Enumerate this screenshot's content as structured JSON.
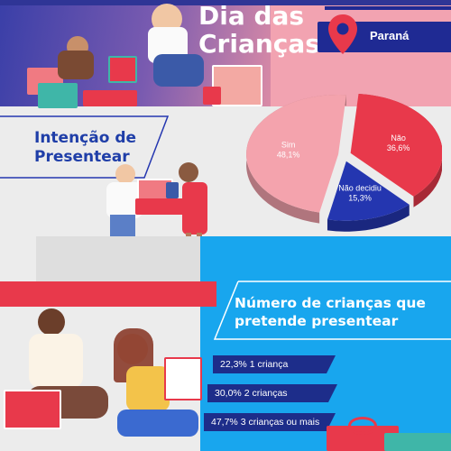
{
  "header": {
    "title_line1": "Dia das",
    "title_line2": "Crianças",
    "region": "Paraná"
  },
  "intent_section": {
    "title_line1": "Intenção de",
    "title_line2": "Presentear"
  },
  "count_section": {
    "title_line1": "Número de crianças que",
    "title_line2": "pretende presentear",
    "bars": [
      {
        "label": "22,3% 1 criança"
      },
      {
        "label": "30,0% 2 crianças"
      },
      {
        "label": "47,7% 3 crianças ou mais"
      }
    ]
  },
  "colors": {
    "navy": "#1f2a93",
    "pink": "#f2a3b1",
    "red": "#e8394b",
    "blue": "#18a6ee",
    "bar_navy": "#1d2d8a"
  },
  "chart_data": [
    {
      "type": "pie",
      "title": "Intenção de Presentear",
      "slices": [
        {
          "label": "Sim",
          "value": 48.1,
          "value_label": "48,1%",
          "color": "#f4a3ad"
        },
        {
          "label": "Não",
          "value": 36.6,
          "value_label": "36,6%",
          "color": "#e8394b"
        },
        {
          "label": "Não decidiu",
          "value": 15.3,
          "value_label": "15,3%",
          "color": "#2436b0"
        }
      ],
      "style": "3d-exploded"
    },
    {
      "type": "bar",
      "title": "Número de crianças que pretende presentear",
      "categories": [
        "1 criança",
        "2 crianças",
        "3 crianças ou mais"
      ],
      "values": [
        22.3,
        30.0,
        47.7
      ],
      "value_labels": [
        "22,3%",
        "30,0%",
        "47,7%"
      ],
      "orientation": "horizontal"
    }
  ]
}
